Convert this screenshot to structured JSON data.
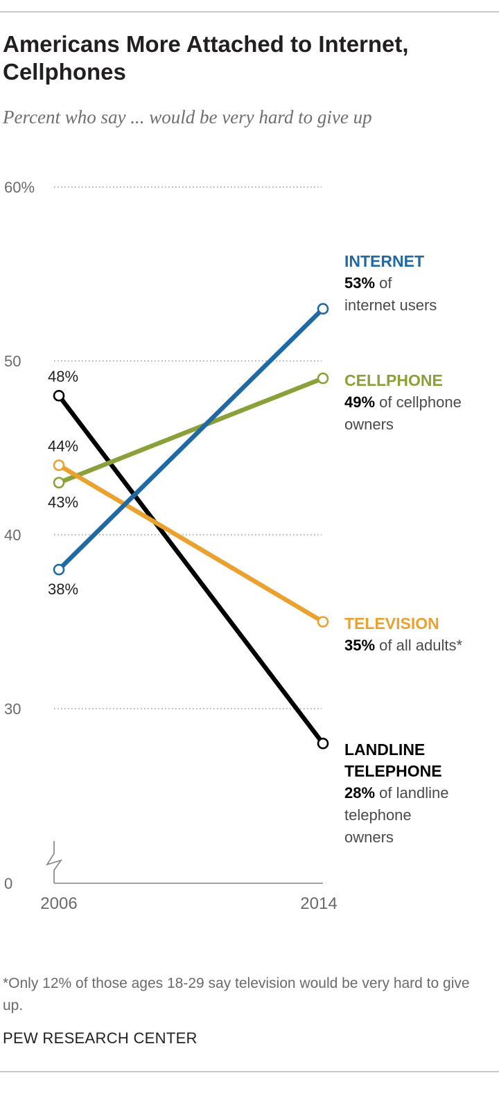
{
  "title": "Americans More Attached to Internet, Cellphones",
  "subtitle": "Percent who say ... would be very hard to give up",
  "footnote": "*Only 12% of those ages 18-29 say television would be very hard to give up.",
  "source": "PEW RESEARCH CENTER",
  "colors": {
    "internet": "#1f6aa5",
    "cellphone": "#8aa139",
    "television": "#eba12e",
    "landline": "#000000",
    "axis": "#808080",
    "grid": "#9a9a9a"
  },
  "chart_data": {
    "type": "line",
    "x": [
      "2006",
      "2014"
    ],
    "ylim": [
      0,
      60
    ],
    "yticks": [
      "60%",
      "50",
      "40",
      "30",
      "0"
    ],
    "ytick_values": [
      60,
      50,
      40,
      30,
      0
    ],
    "axis_break": true,
    "grid": true,
    "legend": "direct labels at right",
    "series": [
      {
        "key": "internet",
        "name": "INTERNET",
        "values": [
          38,
          53
        ],
        "start_label": "38%",
        "end_value_label": "53%",
        "end_description": "of internet users"
      },
      {
        "key": "cellphone",
        "name": "CELLPHONE",
        "values": [
          43,
          49
        ],
        "start_label": "43%",
        "end_value_label": "49%",
        "end_description": "of cellphone owners"
      },
      {
        "key": "television",
        "name": "TELEVISION",
        "values": [
          44,
          35
        ],
        "start_label": "44%",
        "end_value_label": "35%",
        "end_description": "of all adults*"
      },
      {
        "key": "landline",
        "name": "LANDLINE TELEPHONE",
        "values": [
          48,
          28
        ],
        "start_label": "48%",
        "end_value_label": "28%",
        "end_description": "of landline telephone owners"
      }
    ]
  }
}
